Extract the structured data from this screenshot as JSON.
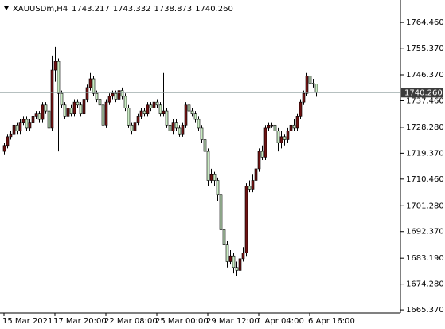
{
  "chart_data": {
    "type": "candlestick",
    "header": {
      "symbol": "XAUUSDm,H4",
      "values": [
        "1743.217",
        "1743.332",
        "1738.873",
        "1740.260"
      ]
    },
    "categories": [
      "15 Mar 2021",
      null,
      null,
      null,
      null,
      null,
      null,
      null,
      null,
      null,
      null,
      null,
      null,
      null,
      null,
      null,
      "17 Mar 20:00",
      null,
      null,
      null,
      null,
      null,
      null,
      null,
      null,
      null,
      null,
      null,
      null,
      null,
      null,
      null,
      "22 Mar 08:00",
      null,
      null,
      null,
      null,
      null,
      null,
      null,
      null,
      null,
      null,
      null,
      null,
      null,
      null,
      null,
      "25 Mar 00:00",
      null,
      null,
      null,
      null,
      null,
      null,
      null,
      null,
      null,
      null,
      null,
      null,
      null,
      null,
      null,
      "29 Mar 12:00",
      null,
      null,
      null,
      null,
      null,
      null,
      null,
      null,
      null,
      null,
      null,
      null,
      null,
      null,
      null,
      "1 Apr 04:00",
      null,
      null,
      null,
      null,
      null,
      null,
      null,
      null,
      null,
      null,
      null,
      null,
      null,
      null,
      null,
      "6 Apr 16:00",
      null,
      null
    ],
    "open": [
      1720,
      1722,
      1725,
      1726,
      1729,
      1727,
      1730,
      1731,
      1728,
      1730,
      1732,
      1733,
      1731,
      1736,
      1734,
      1728,
      1748,
      1751,
      1740,
      1736,
      1732,
      1735,
      1733,
      1737,
      1736,
      1733,
      1738,
      1742,
      1745,
      1740,
      1738,
      1736,
      1729,
      1737,
      1739,
      1740,
      1738,
      1741,
      1739,
      1735,
      1729,
      1727,
      1730,
      1732,
      1734,
      1733,
      1736,
      1735,
      1737,
      1736,
      1733,
      1734,
      1729,
      1727,
      1730,
      1728,
      1726,
      1729,
      1736,
      1734,
      1733,
      1731,
      1728,
      1724,
      1720,
      1710,
      1712,
      1710,
      1705,
      1693,
      1688,
      1682,
      1684,
      1680,
      1679,
      1683,
      1685,
      1708,
      1707,
      1710,
      1714,
      1720,
      1718,
      1728,
      1729,
      1729,
      1727,
      1723,
      1725,
      1724,
      1727,
      1729,
      1728,
      1732,
      1737,
      1740,
      1746,
      1743.5,
      1743.217
    ],
    "high": [
      1723,
      1726,
      1727,
      1730,
      1730,
      1731,
      1732,
      1732,
      1731,
      1733,
      1734,
      1734,
      1737,
      1737,
      1735,
      1753,
      1756,
      1752,
      1741,
      1737,
      1736,
      1736,
      1738,
      1738,
      1737,
      1739,
      1743,
      1747,
      1746,
      1741,
      1739,
      1737,
      1738,
      1740,
      1741,
      1741,
      1742,
      1742,
      1740,
      1736,
      1730,
      1731,
      1733,
      1735,
      1735,
      1737,
      1737,
      1738,
      1738,
      1737,
      1747,
      1735,
      1730,
      1731,
      1731,
      1729,
      1730,
      1737,
      1737,
      1735,
      1734,
      1732,
      1729,
      1725,
      1721,
      1714,
      1713,
      1711,
      1706,
      1694,
      1689,
      1686,
      1685,
      1682,
      1685,
      1687,
      1709,
      1710,
      1712,
      1716,
      1721,
      1722,
      1729,
      1730,
      1730,
      1730,
      1728,
      1727,
      1726,
      1728,
      1730,
      1731,
      1733,
      1738,
      1741,
      1747,
      1747,
      1745,
      1743.332
    ],
    "low": [
      1719,
      1721,
      1724,
      1725,
      1726,
      1726,
      1729,
      1727,
      1727,
      1729,
      1731,
      1730,
      1730,
      1733,
      1725,
      1727,
      1744,
      1720,
      1735,
      1731,
      1731,
      1732,
      1732,
      1735,
      1732,
      1732,
      1737,
      1741,
      1739,
      1737,
      1735,
      1727,
      1728,
      1736,
      1738,
      1737,
      1737,
      1738,
      1734,
      1728,
      1726,
      1726,
      1729,
      1731,
      1732,
      1732,
      1734,
      1734,
      1735,
      1732,
      1732,
      1728,
      1726,
      1726,
      1727,
      1725,
      1725,
      1728,
      1733,
      1732,
      1730,
      1727,
      1723,
      1718,
      1708,
      1709,
      1708,
      1703,
      1691,
      1686,
      1680,
      1681,
      1678,
      1677,
      1678,
      1682,
      1684,
      1706,
      1706,
      1709,
      1713,
      1717,
      1717,
      1727,
      1728,
      1726,
      1720,
      1721,
      1722,
      1723,
      1726,
      1727,
      1727,
      1731,
      1736,
      1739,
      1742,
      1742,
      1738.873
    ],
    "close": [
      1722,
      1725,
      1726,
      1729,
      1727,
      1730,
      1731,
      1728,
      1730,
      1732,
      1733,
      1731,
      1736,
      1734,
      1728,
      1748,
      1751,
      1740,
      1736,
      1732,
      1735,
      1733,
      1737,
      1736,
      1733,
      1738,
      1742,
      1745,
      1740,
      1738,
      1736,
      1729,
      1737,
      1739,
      1740,
      1738,
      1741,
      1739,
      1735,
      1729,
      1727,
      1730,
      1732,
      1734,
      1733,
      1736,
      1735,
      1737,
      1736,
      1733,
      1734,
      1729,
      1727,
      1730,
      1728,
      1726,
      1729,
      1736,
      1734,
      1733,
      1731,
      1728,
      1724,
      1720,
      1710,
      1712,
      1710,
      1705,
      1693,
      1688,
      1682,
      1684,
      1680,
      1679,
      1683,
      1685,
      1708,
      1707,
      1710,
      1714,
      1720,
      1718,
      1728,
      1729,
      1729,
      1727,
      1723,
      1725,
      1724,
      1727,
      1729,
      1728,
      1732,
      1737,
      1740,
      1746,
      1743.5,
      1743.217,
      1740.26
    ],
    "up_color": "#6e1212",
    "down_color": "#c9ebc3",
    "outline_color": "#000000",
    "current_price": {
      "value": 1740.26,
      "label": "1740.260"
    },
    "ylim": [
      1664.3,
      1770.8
    ],
    "yticks": [
      {
        "value": 1764.46,
        "label": "1764.460"
      },
      {
        "value": 1755.37,
        "label": "1755.370"
      },
      {
        "value": 1746.37,
        "label": "1746.370"
      },
      {
        "value": 1737.46,
        "label": "1737.460"
      },
      {
        "value": 1728.28,
        "label": "1728.280"
      },
      {
        "value": 1719.37,
        "label": "1719.370"
      },
      {
        "value": 1710.46,
        "label": "1710.460"
      },
      {
        "value": 1701.28,
        "label": "1701.280"
      },
      {
        "value": 1692.37,
        "label": "1692.370"
      },
      {
        "value": 1683.19,
        "label": "1683.190"
      },
      {
        "value": 1674.28,
        "label": "1674.280"
      },
      {
        "value": 1665.37,
        "label": "1665.370"
      }
    ]
  }
}
